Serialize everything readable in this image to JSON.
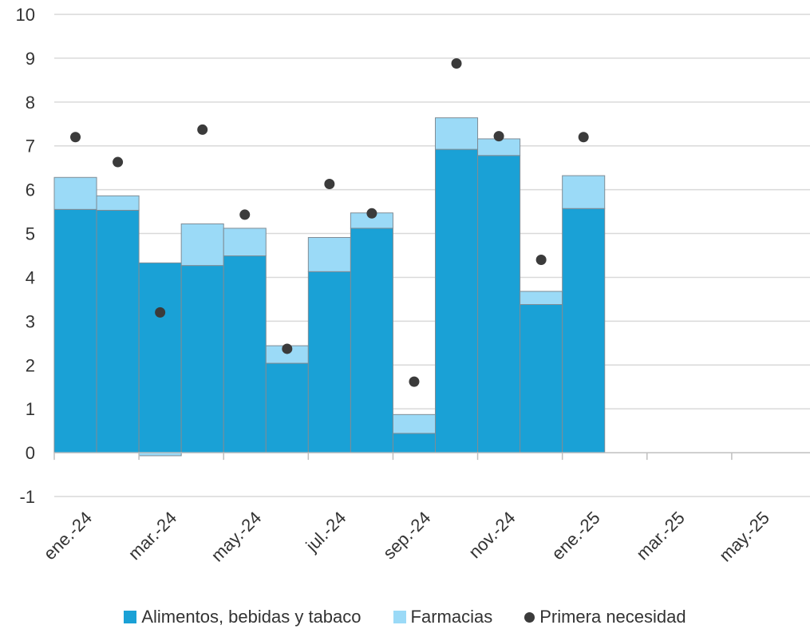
{
  "chart_data": {
    "type": "bar",
    "categories": [
      "ene.-24",
      "feb.-24",
      "mar.-24",
      "abr.-24",
      "may.-24",
      "jun.-24",
      "jul.-24",
      "ago.-24",
      "sep.-24",
      "oct.-24",
      "nov.-24",
      "dic.-24",
      "ene.-25",
      "feb.-25",
      "mar.-25",
      "abr.-25",
      "may.-25",
      "jun.-25"
    ],
    "x_tick_labels": [
      "ene.-24",
      "mar.-24",
      "may.-24",
      "jul.-24",
      "sep.-24",
      "nov.-24",
      "ene.-25",
      "mar.-25",
      "may.-25"
    ],
    "ylim": [
      -1,
      10
    ],
    "yticks": [
      -1,
      0,
      1,
      2,
      3,
      4,
      5,
      6,
      7,
      8,
      9,
      10
    ],
    "grid": true,
    "legend_position": "bottom",
    "series": [
      {
        "name": "Alimentos, bebidas y tabaco",
        "kind": "stacked-bar",
        "color": "#1aa1d6",
        "values": [
          5.55,
          5.53,
          4.33,
          4.27,
          4.49,
          2.04,
          4.13,
          5.12,
          0.44,
          6.92,
          6.78,
          3.38,
          5.57,
          null,
          null,
          null,
          null,
          null
        ]
      },
      {
        "name": "Farmacias",
        "kind": "stacked-bar",
        "color": "#9bdaf7",
        "values": [
          0.73,
          0.33,
          -0.07,
          0.95,
          0.63,
          0.4,
          0.78,
          0.35,
          0.43,
          0.72,
          0.38,
          0.3,
          0.75,
          null,
          null,
          null,
          null,
          null
        ]
      },
      {
        "name": "Primera necesidad",
        "kind": "point",
        "color": "#3b3b3b",
        "values": [
          7.2,
          6.63,
          3.2,
          7.37,
          5.43,
          2.37,
          6.13,
          5.46,
          1.62,
          8.88,
          7.22,
          4.4,
          7.2,
          null,
          null,
          null,
          null,
          null
        ]
      }
    ]
  }
}
